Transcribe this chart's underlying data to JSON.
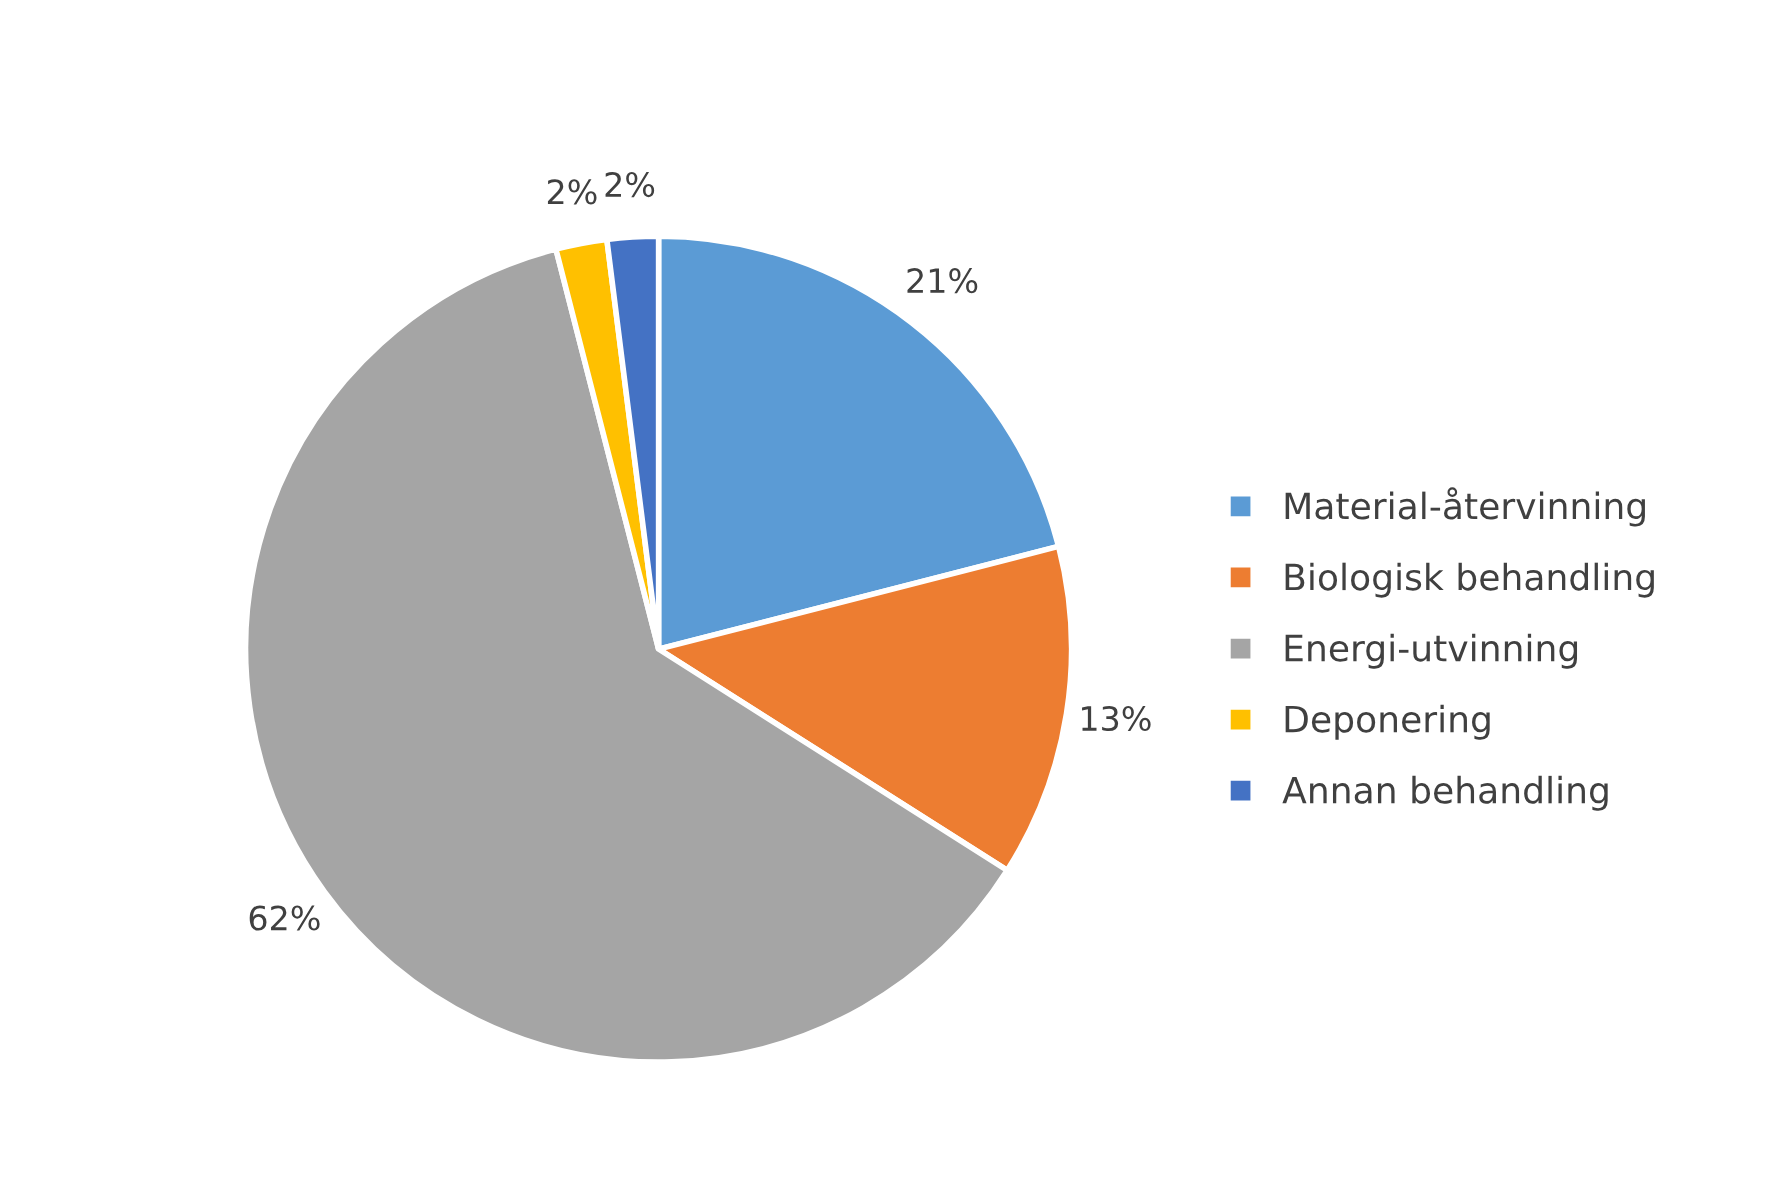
{
  "chart_data": {
    "type": "pie",
    "categories": [
      "Material-återvinning",
      "Biologisk behandling",
      "Energi-utvinning",
      "Deponering",
      "Annan behandling"
    ],
    "values": [
      21,
      13,
      62,
      2,
      2
    ],
    "value_labels": [
      "21%",
      "13%",
      "62%",
      "2%",
      "2%"
    ],
    "colors": [
      "#5b9bd5",
      "#ed7d31",
      "#a5a5a5",
      "#ffc000",
      "#4472c4"
    ],
    "legend": "right"
  }
}
